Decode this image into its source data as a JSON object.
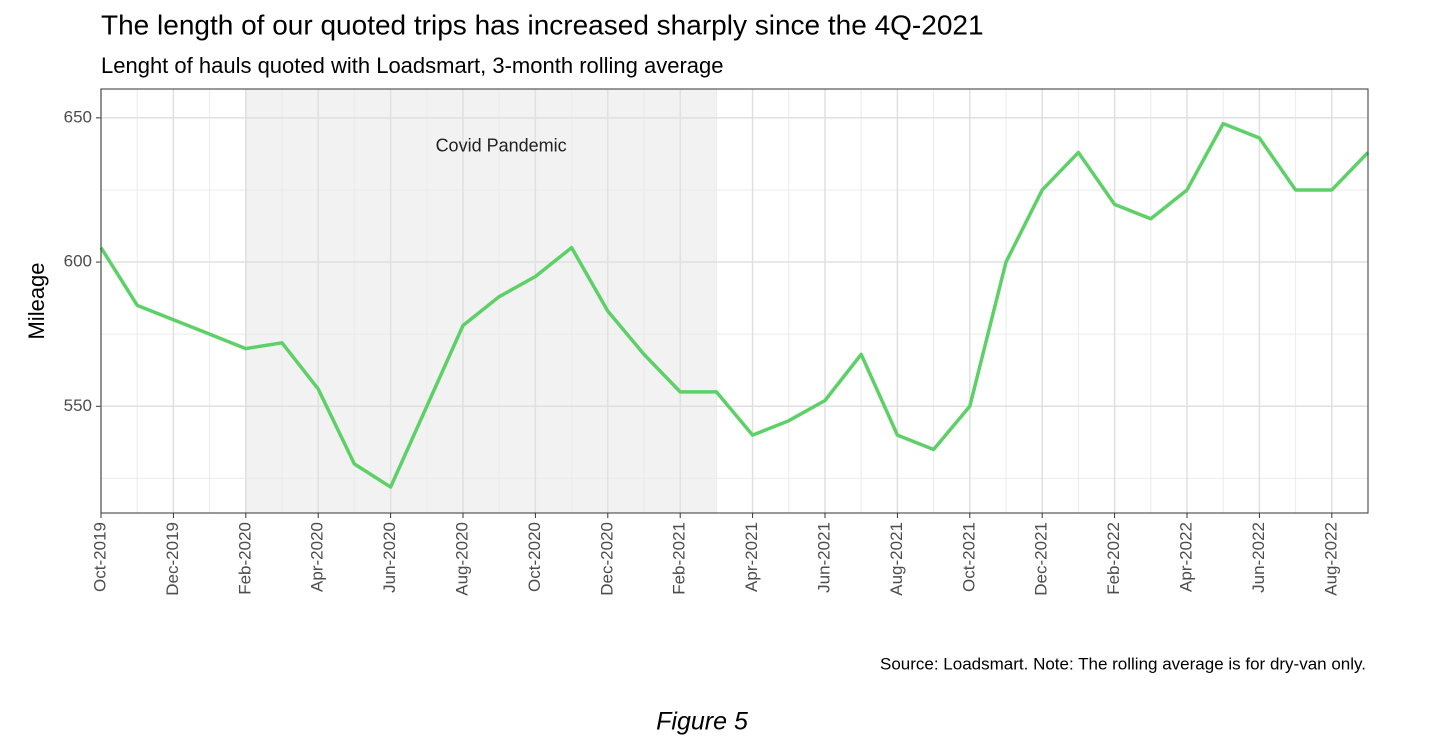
{
  "chart_data": {
    "type": "line",
    "title": "The length of our quoted trips has increased sharply since the 4Q-2021",
    "subtitle": "Lenght of hauls quoted with Loadsmart, 3-month rolling average",
    "y_label": "Mileage",
    "source": "Source: Loadsmart. Note: The rolling average is for dry-van only.",
    "caption": "Figure 5",
    "shaded_region": {
      "label": "Covid Pandemic",
      "start": "2020-02",
      "end": "2021-03"
    },
    "x": [
      "2019-10",
      "2019-11",
      "2019-12",
      "2020-01",
      "2020-02",
      "2020-03",
      "2020-04",
      "2020-05",
      "2020-06",
      "2020-07",
      "2020-08",
      "2020-09",
      "2020-10",
      "2020-11",
      "2020-12",
      "2021-01",
      "2021-02",
      "2021-03",
      "2021-04",
      "2021-05",
      "2021-06",
      "2021-07",
      "2021-08",
      "2021-09",
      "2021-10",
      "2021-11",
      "2021-12",
      "2022-01",
      "2022-02",
      "2022-03",
      "2022-04",
      "2022-05",
      "2022-06",
      "2022-07",
      "2022-08",
      "2022-09"
    ],
    "series": [
      {
        "name": "Mileage",
        "color": "#5dd068",
        "values": [
          605,
          585,
          580,
          575,
          570,
          572,
          556,
          530,
          522,
          550,
          578,
          588,
          595,
          605,
          583,
          568,
          555,
          555,
          540,
          545,
          552,
          568,
          540,
          535,
          550,
          600,
          625,
          638,
          620,
          615,
          625,
          648,
          643,
          625,
          625,
          638
        ]
      }
    ],
    "xlim": [
      "2019-10",
      "2022-09"
    ],
    "xticks": [
      {
        "value": "2019-10",
        "label": "Oct-2019"
      },
      {
        "value": "2019-12",
        "label": "Dec-2019"
      },
      {
        "value": "2020-02",
        "label": "Feb-2020"
      },
      {
        "value": "2020-04",
        "label": "Apr-2020"
      },
      {
        "value": "2020-06",
        "label": "Jun-2020"
      },
      {
        "value": "2020-08",
        "label": "Aug-2020"
      },
      {
        "value": "2020-10",
        "label": "Oct-2020"
      },
      {
        "value": "2020-12",
        "label": "Dec-2020"
      },
      {
        "value": "2021-02",
        "label": "Feb-2021"
      },
      {
        "value": "2021-04",
        "label": "Apr-2021"
      },
      {
        "value": "2021-06",
        "label": "Jun-2021"
      },
      {
        "value": "2021-08",
        "label": "Aug-2021"
      },
      {
        "value": "2021-10",
        "label": "Oct-2021"
      },
      {
        "value": "2021-12",
        "label": "Dec-2021"
      },
      {
        "value": "2022-02",
        "label": "Feb-2022"
      },
      {
        "value": "2022-04",
        "label": "Apr-2022"
      },
      {
        "value": "2022-06",
        "label": "Jun-2022"
      },
      {
        "value": "2022-08",
        "label": "Aug-2022"
      }
    ],
    "ylim": [
      513,
      660
    ],
    "yticks": [
      550,
      600,
      650
    ],
    "grid": true
  }
}
